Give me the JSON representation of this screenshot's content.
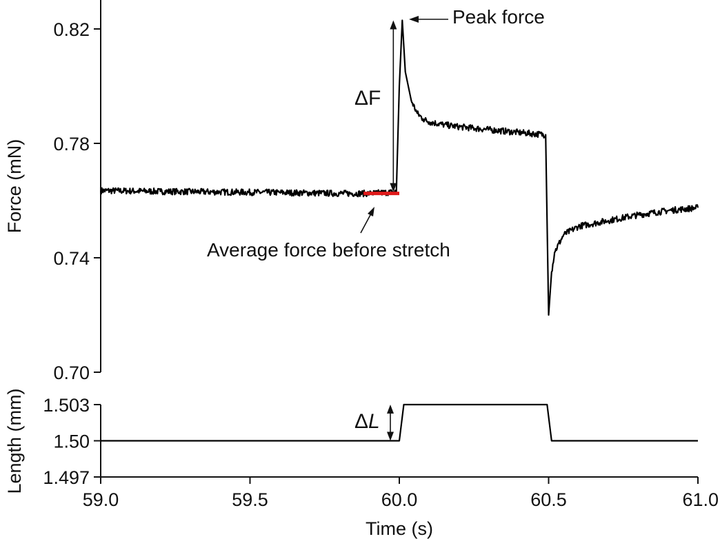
{
  "chart_data": [
    {
      "type": "line",
      "panel": "force",
      "ylabel": "Force (mN)",
      "ylim": [
        0.7,
        0.82
      ],
      "yticks": [
        "0.82",
        "0.78",
        "0.74",
        "0.70"
      ],
      "xlim": [
        59.0,
        61.0
      ],
      "grid": false,
      "series": [
        {
          "x": [
            59.0,
            59.2,
            59.4,
            59.6,
            59.8,
            59.9,
            59.99,
            60.0,
            60.01,
            60.02,
            60.04,
            60.06,
            60.08,
            60.1,
            60.15,
            60.2,
            60.3,
            60.4,
            60.49,
            60.5,
            60.51,
            60.52,
            60.55,
            60.6,
            60.7,
            60.8,
            60.9,
            61.0
          ],
          "y": [
            0.7635,
            0.7632,
            0.763,
            0.7628,
            0.7625,
            0.7625,
            0.763,
            0.8,
            0.823,
            0.805,
            0.795,
            0.7905,
            0.7885,
            0.7875,
            0.7865,
            0.7858,
            0.7848,
            0.7838,
            0.783,
            0.72,
            0.735,
            0.742,
            0.748,
            0.751,
            0.753,
            0.755,
            0.7565,
            0.7575
          ]
        }
      ],
      "annotations": [
        {
          "text": "Peak force",
          "target_x": 60.01,
          "target_y": 0.823
        },
        {
          "text": "Average force before stretch",
          "segment_x": [
            59.88,
            60.0
          ],
          "value": 0.7625
        },
        {
          "text": "ΔF",
          "from": 0.7625,
          "to": 0.823,
          "x": 59.98
        }
      ]
    },
    {
      "type": "line",
      "panel": "length",
      "ylabel": "Length (mm)",
      "ylim": [
        1.497,
        1.503
      ],
      "yticks": [
        "1.503",
        "1.50",
        "1.497"
      ],
      "xlabel": "Time (s)",
      "xlim": [
        59.0,
        61.0
      ],
      "xticks": [
        "59.0",
        "59.5",
        "60.0",
        "60.5",
        "61.0"
      ],
      "grid": false,
      "series": [
        {
          "x": [
            59.0,
            60.0,
            60.015,
            60.495,
            60.51,
            61.0
          ],
          "y": [
            1.5,
            1.5,
            1.503,
            1.503,
            1.5,
            1.5
          ]
        }
      ],
      "annotations": [
        {
          "text": "Δ",
          "italic_suffix": "L",
          "from": 1.5,
          "to": 1.503,
          "x": 59.97
        }
      ]
    }
  ]
}
